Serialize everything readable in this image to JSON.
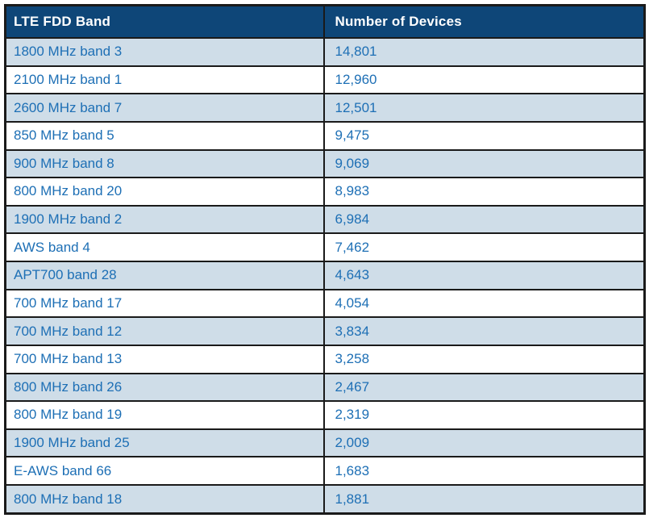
{
  "colors": {
    "header_bg": "#0e4678",
    "header_text": "#ffffff",
    "row_alt_bg": "#cfdde8",
    "row_bg": "#ffffff",
    "cell_text": "#1d6fb5",
    "border": "#1a1a1a"
  },
  "chart_data": {
    "type": "table",
    "columns": [
      "LTE FDD Band",
      "Number of Devices"
    ],
    "rows": [
      [
        "1800 MHz band 3",
        "14,801"
      ],
      [
        "2100 MHz band 1",
        "12,960"
      ],
      [
        "2600 MHz band 7",
        "12,501"
      ],
      [
        "850 MHz band 5",
        "9,475"
      ],
      [
        "900 MHz band 8",
        "9,069"
      ],
      [
        "800 MHz band 20",
        "8,983"
      ],
      [
        "1900 MHz band 2",
        "6,984"
      ],
      [
        "AWS band 4",
        "7,462"
      ],
      [
        "APT700 band 28",
        "4,643"
      ],
      [
        "700 MHz band 17",
        "4,054"
      ],
      [
        "700 MHz band 12",
        "3,834"
      ],
      [
        "700 MHz band 13",
        "3,258"
      ],
      [
        "800 MHz band 26",
        "2,467"
      ],
      [
        "800 MHz band 19",
        "2,319"
      ],
      [
        "1900 MHz band 25",
        "2,009"
      ],
      [
        "E-AWS band 66",
        "1,683"
      ],
      [
        "800 MHz band 18",
        "1,881"
      ]
    ],
    "values": [
      14801,
      12960,
      12501,
      9475,
      9069,
      8983,
      6984,
      7462,
      4643,
      4054,
      3834,
      3258,
      2467,
      2319,
      2009,
      1683,
      1881
    ]
  }
}
